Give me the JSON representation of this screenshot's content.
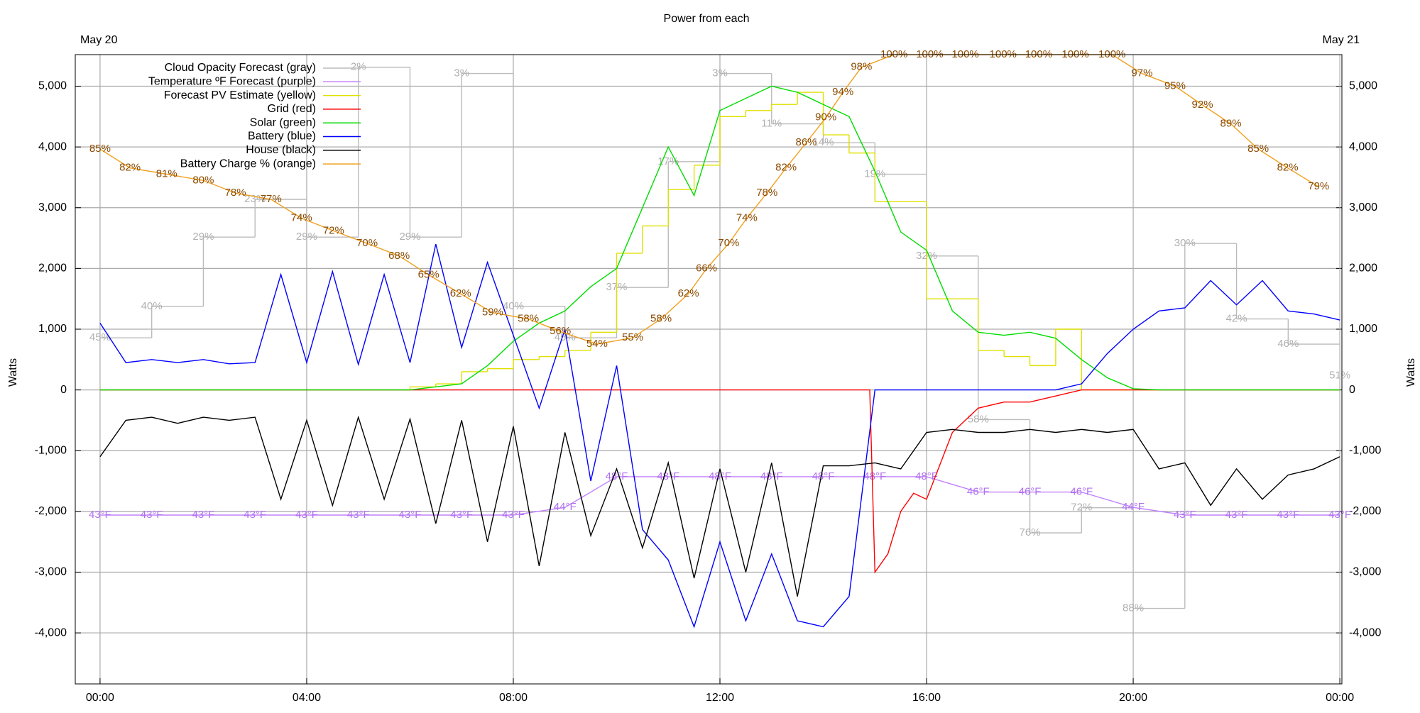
{
  "chart_data": {
    "type": "line",
    "title": "Power from each",
    "date_left": "May 20",
    "date_right": "May 21",
    "ylabel": "Watts",
    "y2label": "Watts",
    "xlim": [
      -0.48,
      24.04
    ],
    "xticks": [
      {
        "value": 0,
        "label": "00:00"
      },
      {
        "value": 4,
        "label": "04:00"
      },
      {
        "value": 8,
        "label": "08:00"
      },
      {
        "value": 12,
        "label": "12:00"
      },
      {
        "value": 16,
        "label": "16:00"
      },
      {
        "value": 20,
        "label": "20:00"
      },
      {
        "value": 24,
        "label": "00:00"
      }
    ],
    "ylim": [
      -4840,
      5520
    ],
    "yticks": [
      {
        "value": -4000,
        "label": "-4,000"
      },
      {
        "value": -3000,
        "label": "-3,000"
      },
      {
        "value": -2000,
        "label": "-2,000"
      },
      {
        "value": -1000,
        "label": "-1,000"
      },
      0,
      {
        "value": 1000,
        "label": "1,000"
      },
      {
        "value": 2000,
        "label": "2,000"
      },
      {
        "value": 3000,
        "label": "3,000"
      },
      {
        "value": 4000,
        "label": "4,000"
      },
      {
        "value": 5000,
        "label": "5,000"
      }
    ],
    "y2lim": [
      -4840,
      5520
    ],
    "y2ticks": [
      {
        "value": -4000,
        "label": "-4,000"
      },
      {
        "value": -3000,
        "label": "-3,000"
      },
      {
        "value": -2000,
        "label": "-2,000"
      },
      {
        "value": -1000,
        "label": "-1,000"
      },
      0,
      {
        "value": 1000,
        "label": "1,000"
      },
      {
        "value": 2000,
        "label": "2,000"
      },
      {
        "value": 3000,
        "label": "3,000"
      },
      {
        "value": 4000,
        "label": "4,000"
      },
      {
        "value": 5000,
        "label": "5,000"
      }
    ],
    "y3lim": [
      0,
      100
    ],
    "y4lim": [
      100,
      0
    ],
    "y5lim": [
      21,
      103
    ],
    "grid": true,
    "legend": "top-left",
    "series": [
      {
        "name": "Cloud Opacity Forecast (gray)",
        "color": "#bbbbbb",
        "axis": "y4",
        "step": true,
        "label_color": "#b0b0b0",
        "x": [
          0,
          1,
          2,
          3,
          4,
          5,
          6,
          7,
          8,
          9,
          10,
          11,
          12,
          13,
          14,
          15,
          16,
          17,
          18,
          19,
          20,
          21,
          22,
          23,
          24
        ],
        "values": [
          45,
          40,
          29,
          23,
          29,
          2,
          29,
          3,
          40,
          45,
          37,
          17,
          3,
          11,
          14,
          19,
          32,
          58,
          76,
          72,
          88,
          30,
          42,
          46,
          51
        ],
        "value_labels": [
          "45%",
          "40%",
          "29%",
          "23%",
          "29%",
          "2%",
          "29%",
          "3%",
          "40%",
          "45%",
          "37%",
          "17%",
          "3%",
          "11%",
          "14%",
          "19%",
          "32%",
          "58%",
          "76%",
          "72%",
          "88%",
          "30%",
          "42%",
          "46%",
          "51%"
        ]
      },
      {
        "name": "Temperature ºF Forecast (purple)",
        "color": "#c080ff",
        "axis": "y5",
        "label_color": "#b070f0",
        "x": [
          0,
          1,
          2,
          3,
          4,
          5,
          6,
          7,
          8,
          9,
          10,
          11,
          12,
          13,
          14,
          15,
          16,
          17,
          18,
          19,
          20,
          21,
          22,
          23,
          24
        ],
        "values": [
          43,
          43,
          43,
          43,
          43,
          43,
          43,
          43,
          43,
          44,
          48,
          48,
          48,
          48,
          48,
          48,
          48,
          46,
          46,
          46,
          44,
          43,
          43,
          43,
          43
        ],
        "value_labels": [
          "43°F",
          "43°F",
          "43°F",
          "43°F",
          "43°F",
          "43°F",
          "43°F",
          "43°F",
          "43°F",
          "44°F",
          "48°F",
          "48°F",
          "48°F",
          "48°F",
          "48°F",
          "48°F",
          "48°F",
          "46°F",
          "46°F",
          "46°F",
          "44°F",
          "43°F",
          "43°F",
          "43°F",
          "43°F"
        ]
      },
      {
        "name": "Forecast PV Estimate (yellow)",
        "color": "#e0e000",
        "step": true,
        "x": [
          0,
          6,
          6.5,
          7,
          7.5,
          8,
          8.5,
          9,
          9.5,
          10,
          10.5,
          11,
          11.5,
          12,
          12.5,
          13,
          13.5,
          14,
          14.5,
          15,
          15.5,
          16,
          16.5,
          17,
          17.5,
          18,
          18.5,
          19,
          19.5,
          24
        ],
        "values": [
          0,
          50,
          100,
          300,
          350,
          500,
          550,
          650,
          950,
          2250,
          2700,
          3300,
          3700,
          4500,
          4600,
          4700,
          4900,
          4200,
          3900,
          3100,
          3100,
          1500,
          1500,
          650,
          550,
          400,
          1000,
          0,
          0,
          0
        ]
      },
      {
        "name": "Grid (red)",
        "color": "#ff0000",
        "x": [
          0,
          14.9,
          15,
          15.25,
          15.5,
          15.75,
          16,
          16.5,
          17,
          17.5,
          18,
          18.5,
          19,
          24
        ],
        "values": [
          0,
          0,
          -3000,
          -2700,
          -2000,
          -1700,
          -1800,
          -700,
          -300,
          -200,
          -200,
          -100,
          0,
          0
        ]
      },
      {
        "name": "Solar (green)",
        "color": "#00dd00",
        "x": [
          0,
          6,
          7,
          7.5,
          8,
          8.5,
          9,
          9.5,
          10,
          10.5,
          11,
          11.5,
          12,
          12.5,
          13,
          13.5,
          14,
          14.5,
          15,
          15.5,
          16,
          16.5,
          17,
          17.5,
          18,
          18.5,
          19,
          19.5,
          20,
          20.5,
          24
        ],
        "values": [
          0,
          0,
          100,
          400,
          800,
          1100,
          1300,
          1700,
          2000,
          3000,
          4000,
          3200,
          4600,
          4800,
          5000,
          4900,
          4700,
          4500,
          3600,
          2600,
          2300,
          1300,
          950,
          900,
          950,
          850,
          500,
          200,
          20,
          0,
          0
        ]
      },
      {
        "name": "Battery (blue)",
        "color": "#0000ff",
        "x": [
          0,
          0.5,
          1,
          1.5,
          2,
          2.5,
          3,
          3.5,
          4,
          4.5,
          5,
          5.5,
          6,
          6.5,
          7,
          7.5,
          8,
          8.5,
          9,
          9.5,
          10,
          10.5,
          11,
          11.5,
          12,
          12.5,
          13,
          13.5,
          14,
          14.5,
          15,
          15.5,
          16,
          16.5,
          17,
          17.5,
          18,
          18.5,
          19,
          19.5,
          20,
          20.5,
          21,
          21.5,
          22,
          22.5,
          23,
          23.5,
          24
        ],
        "values": [
          1100,
          450,
          500,
          450,
          500,
          430,
          450,
          1900,
          450,
          1950,
          420,
          1900,
          450,
          2400,
          700,
          2100,
          900,
          -300,
          1000,
          -1500,
          400,
          -2300,
          -2800,
          -3900,
          -2500,
          -3800,
          -2700,
          -3800,
          -3900,
          -3400,
          0,
          0,
          0,
          0,
          0,
          0,
          0,
          0,
          100,
          600,
          1000,
          1300,
          1350,
          1800,
          1400,
          1800,
          1300,
          1250,
          1150
        ]
      },
      {
        "name": "House (black)",
        "color": "#000000",
        "x": [
          0,
          0.5,
          1,
          1.5,
          2,
          2.5,
          3,
          3.5,
          4,
          4.5,
          5,
          5.5,
          6,
          6.5,
          7,
          7.5,
          8,
          8.5,
          9,
          9.5,
          10,
          10.5,
          11,
          11.5,
          12,
          12.5,
          13,
          13.5,
          14,
          14.5,
          15,
          15.5,
          16,
          16.5,
          17,
          17.5,
          18,
          18.5,
          19,
          19.5,
          20,
          20.5,
          21,
          21.5,
          22,
          22.5,
          23,
          23.5,
          24
        ],
        "values": [
          -1100,
          -500,
          -450,
          -550,
          -450,
          -500,
          -450,
          -1800,
          -500,
          -1900,
          -450,
          -1800,
          -480,
          -2200,
          -500,
          -2500,
          -600,
          -2900,
          -700,
          -2400,
          -1300,
          -2600,
          -1200,
          -3100,
          -1300,
          -3000,
          -1200,
          -3400,
          -1250,
          -1250,
          -1200,
          -1300,
          -700,
          -650,
          -700,
          -700,
          -650,
          -700,
          -650,
          -700,
          -650,
          -1300,
          -1200,
          -1900,
          -1300,
          -1800,
          -1400,
          -1300,
          -1100
        ]
      },
      {
        "name": "Battery Charge % (orange)",
        "color": "#f0a020",
        "axis": "y3",
        "label_color": "#8b4a00",
        "x": [
          0,
          0.58,
          1.29,
          2,
          2.62,
          3.31,
          3.9,
          4.52,
          5.17,
          5.79,
          6.36,
          6.98,
          7.6,
          8.29,
          8.91,
          9.62,
          10.31,
          10.86,
          11.39,
          11.74,
          12.17,
          12.52,
          12.91,
          13.28,
          13.67,
          14.05,
          14.38,
          14.74,
          15.37,
          16.06,
          16.75,
          17.48,
          18.17,
          18.88,
          19.59,
          20.17,
          20.81,
          21.34,
          21.89,
          22.42,
          22.99,
          23.59
        ],
        "values": [
          85,
          82,
          81,
          80,
          78,
          77,
          74,
          72,
          70,
          68,
          65,
          62,
          59,
          58,
          56,
          54,
          55,
          58,
          62,
          66,
          70,
          74,
          78,
          82,
          86,
          90,
          94,
          98,
          100,
          100,
          100,
          100,
          100,
          100,
          100,
          97,
          95,
          92,
          89,
          85,
          82,
          79
        ],
        "value_labels": [
          "85%",
          "82%",
          "81%",
          "80%",
          "78%",
          "77%",
          "74%",
          "72%",
          "70%",
          "68%",
          "65%",
          "62%",
          "59%",
          "58%",
          "56%",
          "54%",
          "55%",
          "58%",
          "62%",
          "66%",
          "70%",
          "74%",
          "78%",
          "82%",
          "86%",
          "90%",
          "94%",
          "98%",
          "100%",
          "100%",
          "100%",
          "100%",
          "100%",
          "100%",
          "100%",
          "97%",
          "95%",
          "92%",
          "89%",
          "85%",
          "82%",
          "79%"
        ]
      }
    ]
  }
}
